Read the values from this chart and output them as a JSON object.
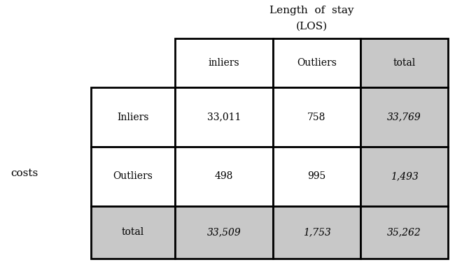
{
  "title_line1": "Length  of  stay",
  "title_line2": "(LOS)",
  "row_label_outer": "costs",
  "col_headers": [
    "inliers",
    "Outliers",
    "total"
  ],
  "row_headers": [
    "Inliers",
    "Outliers",
    "total"
  ],
  "data": [
    [
      "33,011",
      "758",
      "33,769"
    ],
    [
      "498",
      "995",
      "1,493"
    ],
    [
      "33,509",
      "1,753",
      "35,262"
    ]
  ],
  "gray_color": "#c8c8c8",
  "white_color": "#ffffff",
  "line_color": "#000000",
  "text_color": "#000000",
  "bg_color": "#ffffff",
  "italic_vals": [
    [
      false,
      false,
      true
    ],
    [
      false,
      false,
      true
    ],
    [
      true,
      true,
      true
    ]
  ],
  "italic_row_header": [
    false,
    false,
    false
  ],
  "italic_col_header": [
    false,
    false,
    false
  ]
}
